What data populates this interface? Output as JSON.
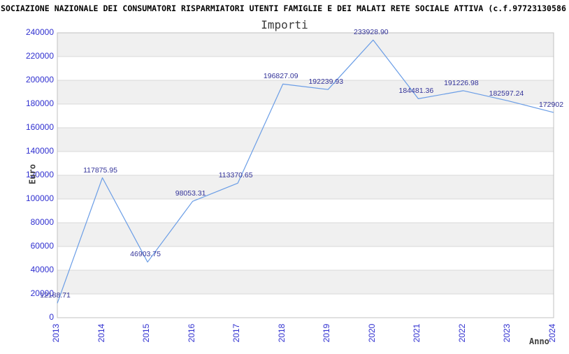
{
  "header": {
    "title": "SOCIAZIONE NAZIONALE DEI CONSUMATORI RISPARMIATORI UTENTI FAMIGLIE E DEI MALATI RETE SOCIALE ATTIVA (c.f.97723130586"
  },
  "chart_data": {
    "type": "line",
    "title": "Importi",
    "xlabel": "Anno",
    "ylabel": "Euro",
    "categories": [
      "2013",
      "2014",
      "2015",
      "2016",
      "2017",
      "2018",
      "2019",
      "2020",
      "2021",
      "2022",
      "2023",
      "2024"
    ],
    "values": [
      12188.71,
      117875.95,
      46903.75,
      98053.31,
      113370.65,
      196827.09,
      192239.93,
      233928.9,
      184481.36,
      191226.98,
      182597.24,
      172902
    ],
    "point_labels": [
      "12188.71",
      "117875.95",
      "46903.75",
      "98053.31",
      "113370.65",
      "196827.09",
      "192239.93",
      "233928.90",
      "184481.36",
      "191226.98",
      "182597.24",
      "172902"
    ],
    "yticks": [
      "0",
      "20000",
      "40000",
      "60000",
      "80000",
      "100000",
      "120000",
      "140000",
      "160000",
      "180000",
      "200000",
      "220000",
      "240000"
    ],
    "ylim": [
      0,
      240000
    ],
    "ytick_step": 20000,
    "legend": "none",
    "grid": "horizontal-bands",
    "colors": {
      "line": "#6a9de6",
      "tick_label": "#3030d0",
      "point_label": "#333399",
      "band": "#f0f0f0",
      "gridline": "#d9d9d9",
      "plot_border": "#c0c0c0",
      "title": "#3a3a3a",
      "axis_title": "#404040",
      "header": "#000000",
      "background": "#ffffff"
    }
  }
}
